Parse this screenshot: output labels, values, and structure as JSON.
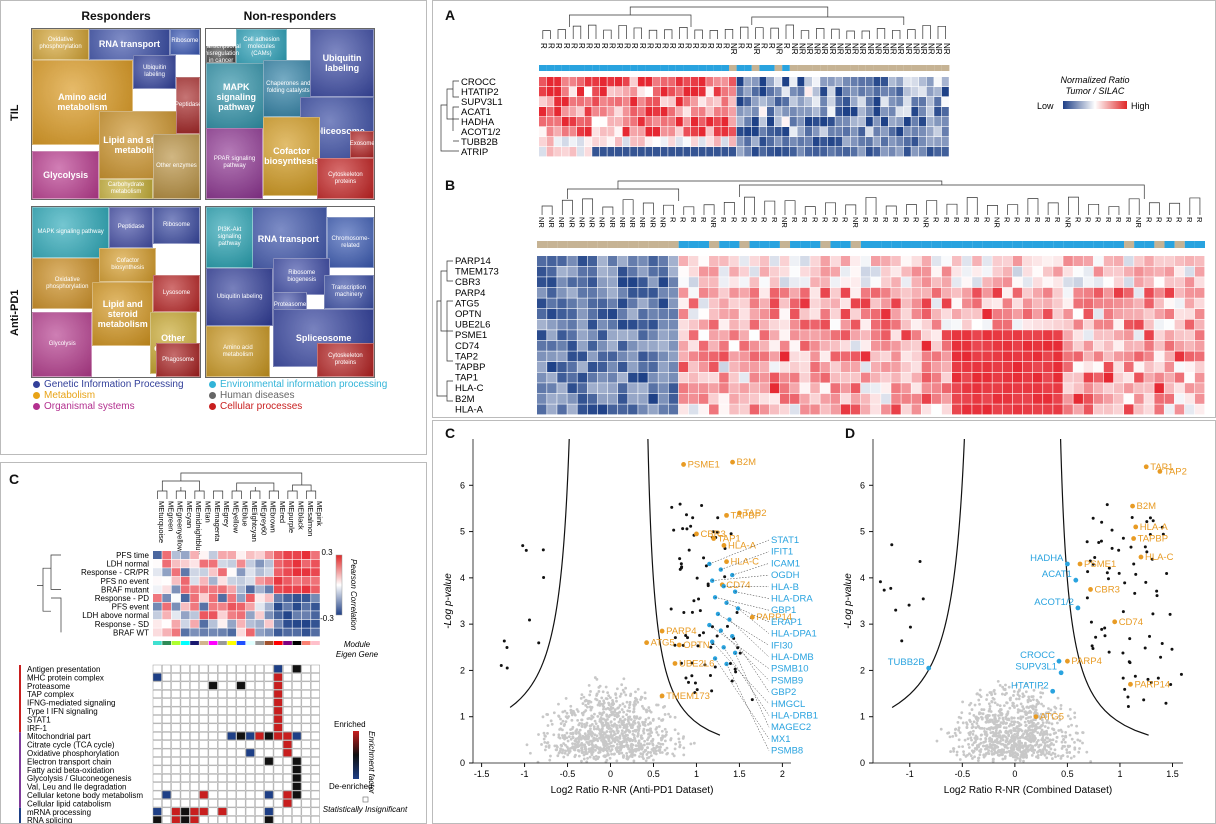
{
  "colors": {
    "orange": "#e89b24",
    "blue": "#29a3df",
    "tan": "#c6b394",
    "dark": "#1e3f86",
    "gray": "#c8c8c8"
  },
  "left_top": {
    "col_headers": [
      "Responders",
      "Non-responders"
    ],
    "row_headers": [
      "TIL",
      "Anti-PD1"
    ],
    "maps": [
      {
        "cells": [
          {
            "t": "RNA transport",
            "big": true
          },
          {
            "t": "Amino acid metabolism",
            "big": true
          },
          {
            "t": "Lipid and steroid metabolism",
            "big": true
          },
          {
            "t": "Glycolysis",
            "big": true
          },
          {
            "t": "Other enzymes",
            "big": false
          },
          {
            "t": "Oxidative phosphorylation",
            "big": false
          },
          {
            "t": "Ubiquitin labeling",
            "big": false
          },
          {
            "t": "Ribosome",
            "big": false
          },
          {
            "t": "Peptidase",
            "big": false
          },
          {
            "t": "Carbohydrate metabolism",
            "big": false
          }
        ]
      },
      {
        "cells": [
          {
            "t": "Cell adhesion molecules (CAMs)",
            "big": false
          },
          {
            "t": "MAPK signaling pathway",
            "big": true
          },
          {
            "t": "Chaperones and folding catalysts",
            "big": false
          },
          {
            "t": "Ubiquitin labeling",
            "big": true
          },
          {
            "t": "Spliceosome",
            "big": true
          },
          {
            "t": "PPAR signaling pathway",
            "big": false
          },
          {
            "t": "Cofactor biosynthesis",
            "big": true
          },
          {
            "t": "Cytoskeleton proteins",
            "big": false
          },
          {
            "t": "Exosome",
            "big": false
          },
          {
            "t": "Transcriptional misregulation in cancer",
            "big": false
          }
        ]
      },
      {
        "cells": [
          {
            "t": "MAPK signaling pathway",
            "big": false
          },
          {
            "t": "Oxidative phosphorylation",
            "big": false
          },
          {
            "t": "Cofactor biosynthesis",
            "big": false
          },
          {
            "t": "Lipid and steroid metabolism",
            "big": true
          },
          {
            "t": "Glycolysis",
            "big": false
          },
          {
            "t": "Other enzymes",
            "big": true
          },
          {
            "t": "Lysosome",
            "big": false
          },
          {
            "t": "Phagosome",
            "big": false
          },
          {
            "t": "Ribosome",
            "big": false
          },
          {
            "t": "Peptidase",
            "big": false
          }
        ]
      },
      {
        "cells": [
          {
            "t": "RNA transport",
            "big": true
          },
          {
            "t": "Chromosome-related",
            "big": false
          },
          {
            "t": "PI3K-Akt signaling pathway",
            "big": false
          },
          {
            "t": "Ribosome biogenesis",
            "big": false
          },
          {
            "t": "Proteasome",
            "big": false
          },
          {
            "t": "Spliceosome",
            "big": true
          },
          {
            "t": "Transcription machinery",
            "big": false
          },
          {
            "t": "Amino acid metabolism",
            "big": false
          },
          {
            "t": "Cytoskeleton proteins",
            "big": false
          },
          {
            "t": "Ubiquitin labeling",
            "big": false
          }
        ]
      }
    ],
    "legend": [
      {
        "label": "Genetic Information Processing",
        "color": "#33409a"
      },
      {
        "label": "Environmental information processing",
        "color": "#33b4d8"
      },
      {
        "label": "Metabolism",
        "color": "#e8a317"
      },
      {
        "label": "Human diseases",
        "color": "#666666"
      },
      {
        "label": "Organismal systems",
        "color": "#b3308f"
      },
      {
        "label": "Cellular processes",
        "color": "#c81e1e"
      }
    ]
  },
  "panelC_left": {
    "letter": "C",
    "modules": [
      "MEturquoise",
      "MEgreen",
      "MEgreenyellow",
      "MEcyan",
      "MEmidnightblue",
      "MEtan",
      "MEmagenta",
      "MEgrey",
      "MEyellow",
      "MEblue",
      "MElightcyan",
      "MEgrey60",
      "MEbrown",
      "MEred",
      "MEpurple",
      "MEblack",
      "MEsalmon",
      "MEpink"
    ],
    "module_colors": [
      "#40e0d0",
      "#2e8b57",
      "#adff2f",
      "#00ffff",
      "#191970",
      "#d2b48c",
      "#ff00ff",
      "#999999",
      "#ffff00",
      "#1e50ff",
      "#e0ffff",
      "#999999",
      "#a0522d",
      "#ff0000",
      "#800080",
      "#000000",
      "#fa8072",
      "#ffc0cb"
    ],
    "clinical_rows": [
      "PFS time",
      "LDH normal",
      "Response - CR/PR",
      "PFS no event",
      "BRAF mutant",
      "Response - PD",
      "PFS event",
      "LDH above normal",
      "Response - SD",
      "BRAF WT"
    ],
    "scale_top": "0.3",
    "scale_bottom": "-0.3",
    "scale_label": "Pearson Correlation",
    "module_eigen_label": "Module Eigen Gene",
    "enrich_rows": [
      "Antigen presentation",
      "MHC protein complex",
      "Proteasome",
      "TAP complex",
      "IFNG-mediated signaling",
      "Type I IFN signaling",
      "STAT1",
      "IRF-1",
      "Mitochondrial part",
      "Citrate cycle (TCA cycle)",
      "Oxidative phosphorylation",
      "Electron transport chain",
      "Fatty acid beta-oxidation",
      "Glycolysis / Gluconeogenesis",
      "Val, Leu and Ile degradation",
      "Cellular ketone body metabolism",
      "Cellular lipid catabolism",
      "mRNA processing",
      "RNA splicing"
    ],
    "enriched_label": "Enriched",
    "deenriched_label": "De-enriched",
    "factor_label": "Enrichment factor",
    "insig_label": "Statistically Insignificant"
  },
  "panelA": {
    "letter": "A",
    "samples": [
      "R",
      "R",
      "R",
      "R",
      "R",
      "R",
      "R",
      "R",
      "R",
      "R",
      "R",
      "R",
      "R",
      "R",
      "R",
      "R",
      "R",
      "R",
      "R",
      "R",
      "R",
      "R",
      "R",
      "R",
      "R",
      "NR",
      "R",
      "R",
      "NR",
      "R",
      "R",
      "NR",
      "R",
      "NR",
      "NR",
      "NR",
      "NR",
      "NR",
      "NR",
      "NR",
      "NR",
      "NR",
      "NR",
      "NR",
      "NR",
      "NR",
      "NR",
      "NR",
      "NR",
      "NR",
      "NR",
      "NR",
      "NR",
      "NR"
    ],
    "genes": [
      "CROCC",
      "HTATIP2",
      "SUPV3L1",
      "ACAT1",
      "HADHA",
      "ACOT1/2",
      "TUBB2B",
      "ATRIP"
    ],
    "legend_title": "Normalized Ratio Tumor / SILAC",
    "legend_low": "Low",
    "legend_high": "High"
  },
  "panelB": {
    "letter": "B",
    "genes": [
      "PARP14",
      "TMEM173",
      "CBR3",
      "PARP4",
      "ATG5",
      "OPTN",
      "UBE2L6",
      "PSME1",
      "CD74",
      "TAP2",
      "TAPBP",
      "TAP1",
      "HLA-C",
      "B2M",
      "HLA-A"
    ],
    "n_samples": 66
  },
  "volcanoC": {
    "letter": "C",
    "xlabel": "Log2 Ratio R-NR (Anti-PD1 Dataset)",
    "ylabel": "-Log p-value",
    "xticks": [
      "-1.5",
      "-1",
      "-0.5",
      "0",
      "0.5",
      "1",
      "1.5",
      "2"
    ],
    "yticks": [
      "0",
      "1",
      "2",
      "3",
      "4",
      "5",
      "6"
    ],
    "orange": [
      {
        "label": "PSME1",
        "x": 0.85,
        "y": 6.45
      },
      {
        "label": "B2M",
        "x": 1.42,
        "y": 6.5
      },
      {
        "label": "TAPBP",
        "x": 1.35,
        "y": 5.35
      },
      {
        "label": "TAP2",
        "x": 1.5,
        "y": 5.4
      },
      {
        "label": "CBR3",
        "x": 1.0,
        "y": 4.95
      },
      {
        "label": "TAP1",
        "x": 1.2,
        "y": 4.85
      },
      {
        "label": "HLA-A",
        "x": 1.32,
        "y": 4.7
      },
      {
        "label": "HLA-C",
        "x": 1.35,
        "y": 4.35
      },
      {
        "label": "CD74",
        "x": 1.3,
        "y": 3.85
      },
      {
        "label": "PARP14",
        "x": 1.65,
        "y": 3.15
      },
      {
        "label": "PARP4",
        "x": 0.6,
        "y": 2.85
      },
      {
        "label": "OPTN",
        "x": 0.8,
        "y": 2.55
      },
      {
        "label": "ATG5",
        "x": 0.42,
        "y": 2.6
      },
      {
        "label": "UBE2L6",
        "x": 0.75,
        "y": 2.15
      },
      {
        "label": "TMEM173",
        "x": 0.6,
        "y": 1.45
      }
    ],
    "blue_labels": [
      "STAT1",
      "IFIT1",
      "ICAM1",
      "OGDH",
      "HLA-B",
      "HLA-DRA",
      "GBP1",
      "ERAP1",
      "HLA-DPA1",
      "IFI30",
      "HLA-DMB",
      "PSMB10",
      "PSMB9",
      "GBP2",
      "HMGCL",
      "HLA-DRB1",
      "MAGEC2",
      "MX1",
      "PSMB8"
    ]
  },
  "volcanoD": {
    "letter": "D",
    "xlabel": "Log2 Ratio R-NR (Combined Dataset)",
    "ylabel": "-Log p-value",
    "xticks": [
      "-1",
      "-0.5",
      "0",
      "0.5",
      "1",
      "1.5"
    ],
    "yticks": [
      "0",
      "1",
      "2",
      "3",
      "4",
      "5",
      "6"
    ],
    "orange": [
      {
        "label": "TAP1",
        "x": 1.25,
        "y": 6.4
      },
      {
        "label": "TAP2",
        "x": 1.38,
        "y": 6.3
      },
      {
        "label": "B2M",
        "x": 1.12,
        "y": 5.55
      },
      {
        "label": "HLA-A",
        "x": 1.15,
        "y": 5.1
      },
      {
        "label": "TAPBP",
        "x": 1.13,
        "y": 4.85
      },
      {
        "label": "HLA-C",
        "x": 1.2,
        "y": 4.45
      },
      {
        "label": "PSME1",
        "x": 0.62,
        "y": 4.3
      },
      {
        "label": "CBR3",
        "x": 0.72,
        "y": 3.75
      },
      {
        "label": "CD74",
        "x": 0.95,
        "y": 3.05
      },
      {
        "label": "PARP4",
        "x": 0.5,
        "y": 2.2
      },
      {
        "label": "PARP14",
        "x": 1.1,
        "y": 1.7
      },
      {
        "label": "ATG5",
        "x": 0.2,
        "y": 1.0
      }
    ],
    "blue": [
      {
        "label": "HADHA",
        "x": 0.5,
        "y": 4.3
      },
      {
        "label": "ACAT1",
        "x": 0.58,
        "y": 3.95
      },
      {
        "label": "ACOT1/2",
        "x": 0.6,
        "y": 3.35
      },
      {
        "label": "TUBB2B",
        "x": -0.82,
        "y": 2.05
      },
      {
        "label": "CROCC",
        "x": 0.42,
        "y": 2.2
      },
      {
        "label": "SUPV3L1",
        "x": 0.44,
        "y": 1.95
      },
      {
        "label": "HTATIP2",
        "x": 0.36,
        "y": 1.55
      }
    ]
  }
}
